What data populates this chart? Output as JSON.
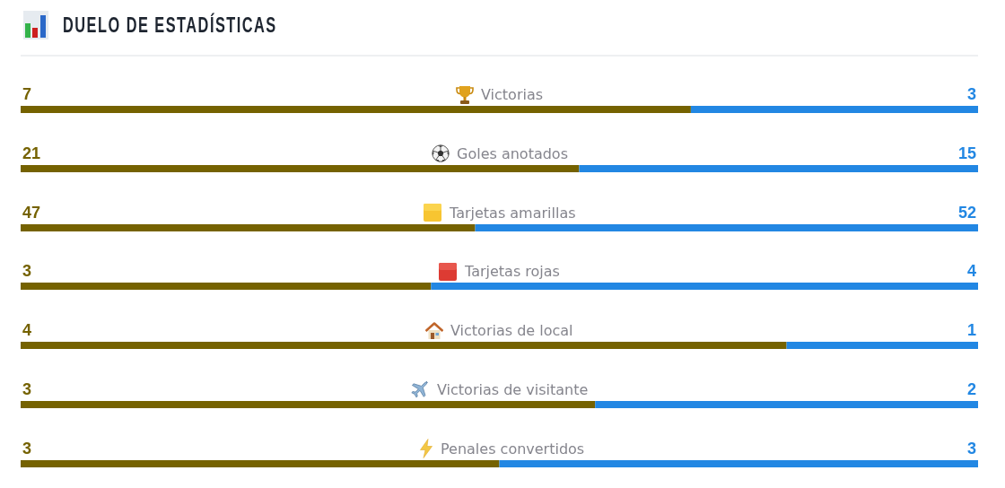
{
  "chart_data": [
    {
      "type": "bar",
      "orientation": "horizontal",
      "stacked": true,
      "title": "DUELO DE ESTADÍSTICAS",
      "categories": [
        "Victorias"
      ],
      "series": [
        {
          "color": "#756200",
          "values": [
            7
          ]
        },
        {
          "color": "#2287e3",
          "values": [
            3
          ]
        }
      ],
      "data_labels": true,
      "tick_labels": "y"
    },
    {
      "type": "bar",
      "orientation": "horizontal",
      "stacked": true,
      "categories": [
        "Goles anotados"
      ],
      "series": [
        {
          "color": "#756200",
          "values": [
            21
          ]
        },
        {
          "color": "#2287e3",
          "values": [
            15
          ]
        }
      ],
      "data_labels": true,
      "tick_labels": "y"
    },
    {
      "type": "bar",
      "orientation": "horizontal",
      "stacked": true,
      "categories": [
        "Tarjetas amarillas"
      ],
      "series": [
        {
          "color": "#756200",
          "values": [
            47
          ]
        },
        {
          "color": "#2287e3",
          "values": [
            52
          ]
        }
      ],
      "data_labels": true,
      "tick_labels": "y"
    },
    {
      "type": "bar",
      "orientation": "horizontal",
      "stacked": true,
      "categories": [
        "Tarjetas rojas"
      ],
      "series": [
        {
          "color": "#756200",
          "values": [
            3
          ]
        },
        {
          "color": "#2287e3",
          "values": [
            4
          ]
        }
      ],
      "data_labels": true,
      "tick_labels": "y"
    },
    {
      "type": "bar",
      "orientation": "horizontal",
      "stacked": true,
      "categories": [
        "Victorias de local"
      ],
      "series": [
        {
          "color": "#756200",
          "values": [
            4
          ]
        },
        {
          "color": "#2287e3",
          "values": [
            1
          ]
        }
      ],
      "data_labels": true,
      "tick_labels": "y"
    },
    {
      "type": "bar",
      "orientation": "horizontal",
      "stacked": true,
      "categories": [
        "Victorias de visitante"
      ],
      "series": [
        {
          "color": "#756200",
          "values": [
            3
          ]
        },
        {
          "color": "#2287e3",
          "values": [
            2
          ]
        }
      ],
      "data_labels": true,
      "tick_labels": "y"
    },
    {
      "type": "bar",
      "orientation": "horizontal",
      "stacked": true,
      "categories": [
        "Penales convertidos"
      ],
      "series": [
        {
          "color": "#756200",
          "values": [
            3
          ]
        },
        {
          "color": "#2287e3",
          "values": [
            3
          ]
        }
      ],
      "data_labels": true,
      "tick_labels": "y"
    }
  ]
}
